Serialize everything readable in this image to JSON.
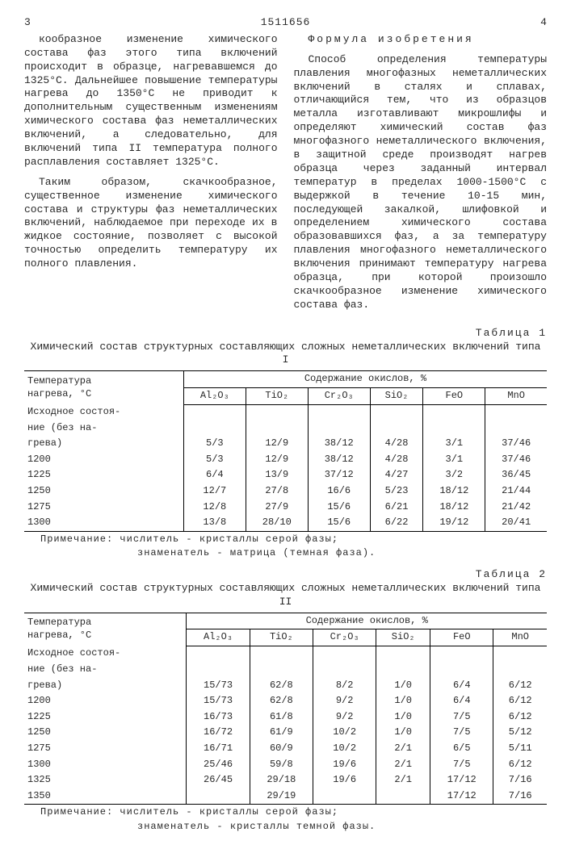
{
  "page": {
    "left_num": "3",
    "doc_number": "1511656",
    "right_num": "4"
  },
  "left_col": {
    "p1": "кообразное изменение химического состава фаз этого типа включений происходит в образце, нагревавшемся до 1325°С. Дальнейшее повышение температуры нагрева до 1350°С не приводит к дополнительным существенным изменениям химического состава фаз неметаллических включений, а следовательно, для включений типа II температура полного расплавления составляет 1325°С.",
    "p2": "Таким образом, скачкообразное, существенное изменение химического состава и структуры фаз неметаллических включений, наблюдаемое при переходе их в жидкое состояние, позволяет с высокой точностью определить температуру их полного плавления."
  },
  "right_col": {
    "formula_title": "Формула изобретения",
    "p1": "Способ определения температуры плавления многофазных неметаллических включений в сталях и сплавах, отличающийся тем, что из образцов металла изготавливают микрошлифы и определяют химический состав фаз многофазного неметаллического включения, в защитной среде производят нагрев образца через заданный интервал температур в пределах 1000-1500°С с выдержкой в течение 10-15 мин, последующей закалкой, шлифовкой и определением химического состава образовавшихся фаз, а за температуру плавления многофазного неметаллического включения принимают температуру нагрева образца, при которой произошло скачкообразное изменение химического состава фаз."
  },
  "table1": {
    "label": "Таблица 1",
    "caption": "Химический состав структурных составляющих сложных неметаллических включений типа I",
    "col_temp_1": "Температура",
    "col_temp_2": "нагрева, °С",
    "oxide_header": "Содержание окислов, %",
    "oxides": [
      "Al₂O₃",
      "TiO₂",
      "Cr₂O₃",
      "SiO₂",
      "FeO",
      "MnO"
    ],
    "rows": [
      {
        "label": "Исходное состоя-",
        "vals": [
          "",
          "",
          "",
          "",
          "",
          ""
        ]
      },
      {
        "label": "ние (без на-",
        "vals": [
          "",
          "",
          "",
          "",
          "",
          ""
        ]
      },
      {
        "label": "грева)",
        "vals": [
          "5/3",
          "12/9",
          "38/12",
          "4/28",
          "3/1",
          "37/46"
        ]
      },
      {
        "label": "1200",
        "vals": [
          "5/3",
          "12/9",
          "38/12",
          "4/28",
          "3/1",
          "37/46"
        ]
      },
      {
        "label": "1225",
        "vals": [
          "6/4",
          "13/9",
          "37/12",
          "4/27",
          "3/2",
          "36/45"
        ]
      },
      {
        "label": "1250",
        "vals": [
          "12/7",
          "27/8",
          "16/6",
          "5/23",
          "18/12",
          "21/44"
        ]
      },
      {
        "label": "1275",
        "vals": [
          "12/8",
          "27/9",
          "15/6",
          "6/21",
          "18/12",
          "21/42"
        ]
      },
      {
        "label": "1300",
        "vals": [
          "13/8",
          "28/10",
          "15/6",
          "6/22",
          "19/12",
          "20/41"
        ]
      }
    ],
    "note1": "Примечание: числитель - кристаллы серой фазы;",
    "note2": "знаменатель - матрица (темная фаза)."
  },
  "table2": {
    "label": "Таблица 2",
    "caption": "Химический состав структурных составляющих сложных неметаллических включений типа II",
    "col_temp_1": "Температура",
    "col_temp_2": "нагрева, °С",
    "oxide_header": "Содержание окислов, %",
    "oxides": [
      "Al₂O₃",
      "TiO₂",
      "Cr₂O₃",
      "SiO₂",
      "FeO",
      "MnO"
    ],
    "rows": [
      {
        "label": "Исходное состоя-",
        "vals": [
          "",
          "",
          "",
          "",
          "",
          ""
        ]
      },
      {
        "label": "ние (без на-",
        "vals": [
          "",
          "",
          "",
          "",
          "",
          ""
        ]
      },
      {
        "label": "грева)",
        "vals": [
          "15/73",
          "62/8",
          "8/2",
          "1/0",
          "6/4",
          "6/12"
        ]
      },
      {
        "label": "1200",
        "vals": [
          "15/73",
          "62/8",
          "9/2",
          "1/0",
          "6/4",
          "6/12"
        ]
      },
      {
        "label": "1225",
        "vals": [
          "16/73",
          "61/8",
          "9/2",
          "1/0",
          "7/5",
          "6/12"
        ]
      },
      {
        "label": "1250",
        "vals": [
          "16/72",
          "61/9",
          "10/2",
          "1/0",
          "7/5",
          "5/12"
        ]
      },
      {
        "label": "1275",
        "vals": [
          "16/71",
          "60/9",
          "10/2",
          "2/1",
          "6/5",
          "5/11"
        ]
      },
      {
        "label": "1300",
        "vals": [
          "25/46",
          "59/8",
          "19/6",
          "2/1",
          "7/5",
          "6/12"
        ]
      },
      {
        "label": "1325",
        "vals": [
          "26/45",
          "29/18",
          "19/6",
          "2/1",
          "17/12",
          "7/16"
        ]
      },
      {
        "label": "1350",
        "vals": [
          "",
          "29/19",
          "",
          "",
          "17/12",
          "7/16"
        ]
      }
    ],
    "note1": "Примечание: числитель - кристаллы серой фазы;",
    "note2": "знаменатель - кристаллы темной фазы."
  }
}
